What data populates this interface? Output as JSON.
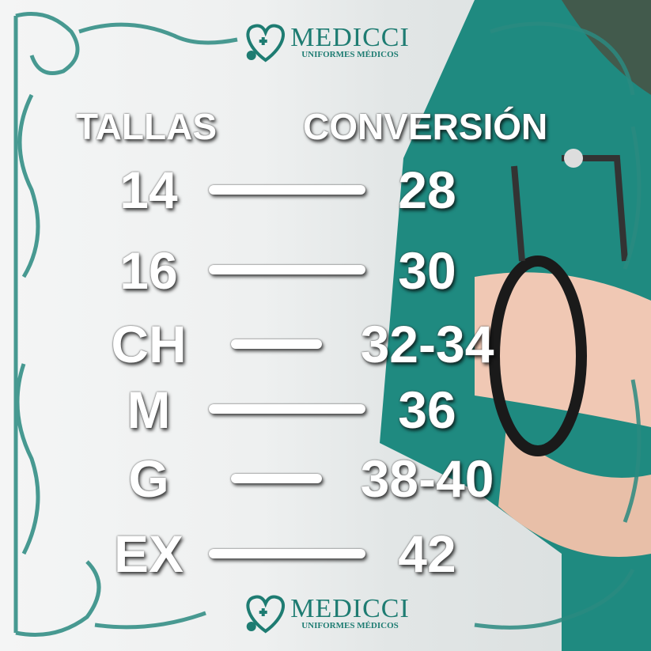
{
  "brand": {
    "name": "MEDICCI",
    "tagline": "UNIFORMES MÉDICOS",
    "color": "#1e7c72"
  },
  "headers": {
    "left": "TALLAS",
    "right": "CONVERSIÓN"
  },
  "rows": [
    {
      "size": "14",
      "conversion": "28"
    },
    {
      "size": "16",
      "conversion": "30"
    },
    {
      "size": "CH",
      "conversion": "32-34"
    },
    {
      "size": "M",
      "conversion": "36"
    },
    {
      "size": "G",
      "conversion": "38-40"
    },
    {
      "size": "EX",
      "conversion": "42"
    }
  ]
}
